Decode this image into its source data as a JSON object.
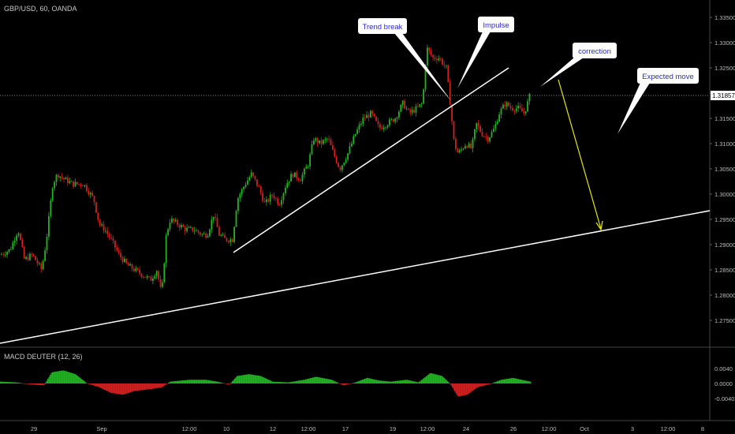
{
  "header": {
    "symbol_line": "GBP/USD, 60, OANDA"
  },
  "indicator": {
    "label": "MACD DEUTER (12, 26)"
  },
  "colors": {
    "up": "#21b521",
    "down": "#d41f1f",
    "trendline": "#ffffff",
    "arrow": "#e6e61a",
    "callout_bg": "#ffffff",
    "callout_text": "#2a2ac8",
    "price_label_bg": "#ffffff"
  },
  "price_axis": {
    "ticks": [
      "1.33500",
      "1.33000",
      "1.32500",
      "1.32000",
      "1.31500",
      "1.31000",
      "1.30500",
      "1.30000",
      "1.29500",
      "1.29000",
      "1.28500",
      "1.28000",
      "1.27500"
    ],
    "current_price": "1.31857"
  },
  "macd_axis": {
    "ticks": [
      "0.0040",
      "0.0000",
      "-0.0040"
    ]
  },
  "time_axis": {
    "labels": [
      "29",
      "Sep",
      "12:00",
      "10",
      "12",
      "12:00",
      "17",
      "19",
      "12:00",
      "24",
      "26",
      "12:00",
      "Oct",
      "3",
      "12:00",
      "8"
    ]
  },
  "callouts": [
    "Trend break",
    "Impulse",
    "correction",
    "Expected move"
  ],
  "chart_data": {
    "type": "candlestick",
    "title": "GBP/USD, 60, OANDA",
    "y_range": [
      1.2725,
      1.3375
    ],
    "price_series_shape": [
      [
        0,
        1.288
      ],
      [
        12,
        1.289
      ],
      [
        22,
        1.293
      ],
      [
        30,
        1.287
      ],
      [
        40,
        1.288
      ],
      [
        52,
        1.285
      ],
      [
        58,
        1.291
      ],
      [
        66,
        1.302
      ],
      [
        72,
        1.304
      ],
      [
        80,
        1.303
      ],
      [
        92,
        1.302
      ],
      [
        105,
        1.302
      ],
      [
        118,
        1.299
      ],
      [
        125,
        1.294
      ],
      [
        132,
        1.293
      ],
      [
        140,
        1.291
      ],
      [
        150,
        1.288
      ],
      [
        160,
        1.286
      ],
      [
        170,
        1.285
      ],
      [
        180,
        1.284
      ],
      [
        190,
        1.283
      ],
      [
        198,
        1.285
      ],
      [
        204,
        1.28
      ],
      [
        210,
        1.292
      ],
      [
        215,
        1.295
      ],
      [
        225,
        1.294
      ],
      [
        235,
        1.293
      ],
      [
        245,
        1.293
      ],
      [
        255,
        1.292
      ],
      [
        262,
        1.292
      ],
      [
        270,
        1.296
      ],
      [
        277,
        1.292
      ],
      [
        285,
        1.291
      ],
      [
        294,
        1.291
      ],
      [
        300,
        1.299
      ],
      [
        310,
        1.302
      ],
      [
        318,
        1.304
      ],
      [
        328,
        1.301
      ],
      [
        335,
        1.298
      ],
      [
        345,
        1.3
      ],
      [
        353,
        1.298
      ],
      [
        362,
        1.302
      ],
      [
        370,
        1.304
      ],
      [
        380,
        1.303
      ],
      [
        390,
        1.306
      ],
      [
        397,
        1.311
      ],
      [
        405,
        1.31
      ],
      [
        415,
        1.311
      ],
      [
        422,
        1.308
      ],
      [
        430,
        1.305
      ],
      [
        440,
        1.308
      ],
      [
        450,
        1.312
      ],
      [
        460,
        1.315
      ],
      [
        470,
        1.316
      ],
      [
        480,
        1.313
      ],
      [
        490,
        1.314
      ],
      [
        500,
        1.315
      ],
      [
        510,
        1.318
      ],
      [
        518,
        1.316
      ],
      [
        528,
        1.317
      ],
      [
        535,
        1.318
      ],
      [
        540,
        1.329
      ],
      [
        548,
        1.327
      ],
      [
        556,
        1.327
      ],
      [
        565,
        1.325
      ],
      [
        570,
        1.318
      ],
      [
        575,
        1.31
      ],
      [
        580,
        1.308
      ],
      [
        590,
        1.31
      ],
      [
        597,
        1.309
      ],
      [
        603,
        1.314
      ],
      [
        610,
        1.312
      ],
      [
        618,
        1.311
      ],
      [
        626,
        1.313
      ],
      [
        632,
        1.316
      ],
      [
        640,
        1.318
      ],
      [
        648,
        1.317
      ],
      [
        656,
        1.317
      ],
      [
        664,
        1.316
      ],
      [
        672,
        1.32
      ]
    ],
    "macd_shape": [
      [
        0,
        0.0005
      ],
      [
        20,
        0.0003
      ],
      [
        40,
        -0.0003
      ],
      [
        55,
        -0.0005
      ],
      [
        65,
        0.003
      ],
      [
        80,
        0.0035
      ],
      [
        95,
        0.0025
      ],
      [
        110,
        0.0
      ],
      [
        125,
        -0.001
      ],
      [
        140,
        -0.0025
      ],
      [
        155,
        -0.003
      ],
      [
        170,
        -0.002
      ],
      [
        190,
        -0.0015
      ],
      [
        205,
        -0.001
      ],
      [
        215,
        0.0005
      ],
      [
        240,
        0.001
      ],
      [
        260,
        0.001
      ],
      [
        275,
        0.0005
      ],
      [
        290,
        -0.0003
      ],
      [
        300,
        0.002
      ],
      [
        315,
        0.0025
      ],
      [
        330,
        0.002
      ],
      [
        345,
        0.0005
      ],
      [
        365,
        0.0003
      ],
      [
        385,
        0.001
      ],
      [
        400,
        0.0018
      ],
      [
        420,
        0.001
      ],
      [
        435,
        -0.0005
      ],
      [
        450,
        0.0003
      ],
      [
        465,
        0.0015
      ],
      [
        480,
        0.0008
      ],
      [
        495,
        0.0005
      ],
      [
        515,
        0.001
      ],
      [
        530,
        0.0003
      ],
      [
        545,
        0.0028
      ],
      [
        560,
        0.002
      ],
      [
        570,
        0.0
      ],
      [
        580,
        -0.0035
      ],
      [
        592,
        -0.003
      ],
      [
        605,
        -0.001
      ],
      [
        620,
        -0.0002
      ],
      [
        635,
        0.001
      ],
      [
        650,
        0.0015
      ],
      [
        665,
        0.0008
      ],
      [
        672,
        0.0005
      ]
    ]
  }
}
